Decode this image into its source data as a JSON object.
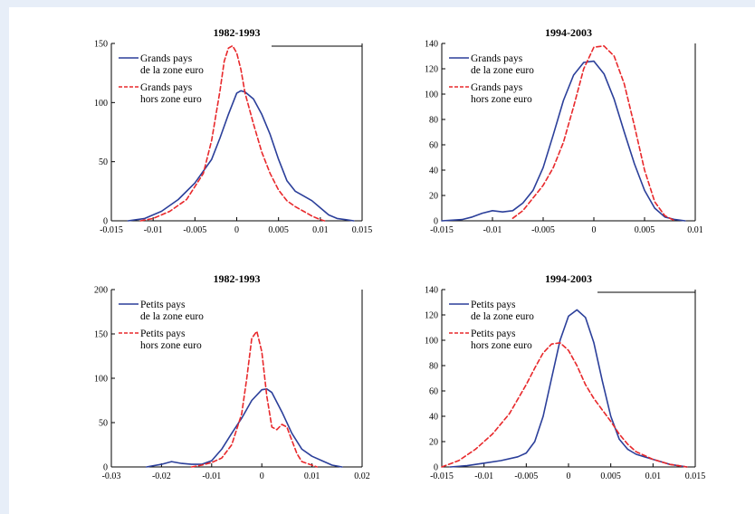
{
  "colors": {
    "blue": "#2b3f9a",
    "red": "#e8282b",
    "background": "#e7eef8"
  },
  "chart_data": [
    {
      "type": "line",
      "title": "1982-1993",
      "xlim": [
        -0.015,
        0.015
      ],
      "ylim": [
        0,
        150
      ],
      "xticks": [
        -0.015,
        -0.01,
        -0.005,
        0,
        0.005,
        0.01,
        0.015
      ],
      "xtick_labels": [
        "-0.015",
        "-0.01",
        "-0.005",
        "0",
        "0.005",
        "0.01",
        "0.015"
      ],
      "yticks": [
        0,
        50,
        100,
        150
      ],
      "ytick_labels": [
        "0",
        "50",
        "100",
        "150"
      ],
      "legend_position": "top-left",
      "series": [
        {
          "legend": [
            "Grands pays",
            "de la zone euro"
          ],
          "color": "#2b3f9a",
          "dash": "solid",
          "x": [
            -0.013,
            -0.011,
            -0.009,
            -0.007,
            -0.005,
            -0.003,
            -0.002,
            -0.001,
            0,
            0.0005,
            0.001,
            0.002,
            0.003,
            0.004,
            0.005,
            0.006,
            0.007,
            0.008,
            0.009,
            0.01,
            0.011,
            0.012,
            0.013,
            0.014
          ],
          "y": [
            0,
            2,
            8,
            18,
            32,
            52,
            70,
            90,
            108,
            110,
            109,
            103,
            90,
            73,
            52,
            34,
            25,
            21,
            17,
            11,
            5,
            2,
            1,
            0
          ]
        },
        {
          "legend": [
            "Grands pays",
            "hors zone euro"
          ],
          "color": "#e8282b",
          "dash": "dashed",
          "x": [
            -0.0115,
            -0.01,
            -0.008,
            -0.006,
            -0.004,
            -0.003,
            -0.002,
            -0.0015,
            -0.001,
            -0.0005,
            0,
            0.0005,
            0.001,
            0.002,
            0.003,
            0.004,
            0.005,
            0.006,
            0.007,
            0.008,
            0.009,
            0.01,
            0.0105
          ],
          "y": [
            0,
            2,
            8,
            18,
            40,
            68,
            110,
            135,
            146,
            148,
            142,
            128,
            108,
            82,
            58,
            40,
            26,
            17,
            12,
            8,
            4,
            1,
            0
          ]
        }
      ]
    },
    {
      "type": "line",
      "title": "1994-2003",
      "xlim": [
        -0.015,
        0.01
      ],
      "ylim": [
        0,
        140
      ],
      "xticks": [
        -0.015,
        -0.01,
        -0.005,
        0,
        0.005,
        0.01
      ],
      "xtick_labels": [
        "-0.015",
        "-0.01",
        "-0.005",
        "0",
        "0.005",
        "0.01"
      ],
      "yticks": [
        0,
        20,
        40,
        60,
        80,
        100,
        120,
        140
      ],
      "ytick_labels": [
        "0",
        "20",
        "40",
        "60",
        "80",
        "100",
        "120",
        "140"
      ],
      "legend_position": "top-left",
      "series": [
        {
          "legend": [
            "Grands pays",
            "de la zone euro"
          ],
          "color": "#2b3f9a",
          "dash": "solid",
          "x": [
            -0.015,
            -0.013,
            -0.012,
            -0.011,
            -0.01,
            -0.009,
            -0.008,
            -0.007,
            -0.006,
            -0.005,
            -0.004,
            -0.003,
            -0.002,
            -0.001,
            0,
            0.001,
            0.002,
            0.003,
            0.004,
            0.005,
            0.006,
            0.007,
            0.008,
            0.009
          ],
          "y": [
            0,
            1,
            3,
            6,
            8,
            7,
            8,
            14,
            24,
            42,
            68,
            95,
            115,
            125,
            126,
            116,
            96,
            70,
            45,
            24,
            10,
            3,
            1,
            0
          ]
        },
        {
          "legend": [
            "Grands pays",
            "hors zone euro"
          ],
          "color": "#e8282b",
          "dash": "dashed",
          "x": [
            -0.008,
            -0.007,
            -0.006,
            -0.005,
            -0.004,
            -0.003,
            -0.002,
            -0.001,
            0,
            0.001,
            0.002,
            0.003,
            0.004,
            0.005,
            0.006,
            0.007,
            0.008
          ],
          "y": [
            2,
            8,
            18,
            28,
            42,
            62,
            90,
            120,
            137,
            138,
            130,
            108,
            75,
            40,
            15,
            4,
            0
          ]
        }
      ]
    },
    {
      "type": "line",
      "title": "1982-1993",
      "xlim": [
        -0.03,
        0.02
      ],
      "ylim": [
        0,
        200
      ],
      "xticks": [
        -0.03,
        -0.02,
        -0.01,
        0,
        0.01,
        0.02
      ],
      "xtick_labels": [
        "-0.03",
        "-0.02",
        "-0.01",
        "0",
        "0.01",
        "0.02"
      ],
      "yticks": [
        0,
        50,
        100,
        150,
        200
      ],
      "ytick_labels": [
        "0",
        "50",
        "100",
        "150",
        "200"
      ],
      "legend_position": "top-left",
      "series": [
        {
          "legend": [
            "Petits pays",
            "de la zone euro"
          ],
          "color": "#2b3f9a",
          "dash": "solid",
          "x": [
            -0.023,
            -0.02,
            -0.018,
            -0.016,
            -0.014,
            -0.012,
            -0.01,
            -0.008,
            -0.006,
            -0.004,
            -0.002,
            0,
            0.001,
            0.002,
            0.004,
            0.006,
            0.008,
            0.01,
            0.012,
            0.014,
            0.016
          ],
          "y": [
            0,
            3,
            6,
            4,
            3,
            3,
            7,
            20,
            38,
            55,
            75,
            87,
            88,
            84,
            62,
            38,
            20,
            12,
            7,
            2,
            0
          ]
        },
        {
          "legend": [
            "Petits pays",
            "hors zone euro"
          ],
          "color": "#e8282b",
          "dash": "dashed",
          "x": [
            -0.014,
            -0.012,
            -0.01,
            -0.008,
            -0.006,
            -0.004,
            -0.003,
            -0.002,
            -0.001,
            0,
            0.001,
            0.002,
            0.003,
            0.004,
            0.005,
            0.006,
            0.007,
            0.008,
            0.01,
            0.011
          ],
          "y": [
            0,
            2,
            5,
            10,
            25,
            60,
            100,
            145,
            153,
            130,
            80,
            45,
            42,
            48,
            45,
            30,
            15,
            6,
            2,
            0
          ]
        }
      ]
    },
    {
      "type": "line",
      "title": "1994-2003",
      "xlim": [
        -0.015,
        0.015
      ],
      "ylim": [
        0,
        140
      ],
      "xticks": [
        -0.015,
        -0.01,
        -0.005,
        0,
        0.005,
        0.01,
        0.015
      ],
      "xtick_labels": [
        "-0.015",
        "-0.01",
        "-0.005",
        "0",
        "0.005",
        "0.01",
        "0.015"
      ],
      "yticks": [
        0,
        20,
        40,
        60,
        80,
        100,
        120,
        140
      ],
      "ytick_labels": [
        "0",
        "20",
        "40",
        "60",
        "80",
        "100",
        "120",
        "140"
      ],
      "legend_position": "top-left",
      "series": [
        {
          "legend": [
            "Petits pays",
            "de la zone euro"
          ],
          "color": "#2b3f9a",
          "dash": "solid",
          "x": [
            -0.014,
            -0.012,
            -0.01,
            -0.008,
            -0.006,
            -0.005,
            -0.004,
            -0.003,
            -0.002,
            -0.001,
            0,
            0.001,
            0.002,
            0.003,
            0.004,
            0.005,
            0.006,
            0.007,
            0.008,
            0.009,
            0.01,
            0.011,
            0.012,
            0.013,
            0.014
          ],
          "y": [
            0,
            1,
            3,
            5,
            8,
            11,
            20,
            40,
            70,
            100,
            119,
            124,
            118,
            98,
            68,
            40,
            22,
            14,
            10,
            8,
            6,
            4,
            2,
            1,
            0
          ]
        },
        {
          "legend": [
            "Petits pays",
            "hors zone euro"
          ],
          "color": "#e8282b",
          "dash": "dashed",
          "x": [
            -0.015,
            -0.013,
            -0.011,
            -0.009,
            -0.007,
            -0.005,
            -0.004,
            -0.003,
            -0.002,
            -0.001,
            0,
            0.001,
            0.002,
            0.003,
            0.004,
            0.005,
            0.006,
            0.007,
            0.008,
            0.009,
            0.01,
            0.011,
            0.012,
            0.013,
            0.014
          ],
          "y": [
            0,
            5,
            14,
            26,
            42,
            65,
            78,
            90,
            97,
            98,
            92,
            80,
            65,
            54,
            45,
            36,
            26,
            18,
            12,
            9,
            6,
            4,
            2,
            1,
            0
          ]
        }
      ]
    }
  ]
}
